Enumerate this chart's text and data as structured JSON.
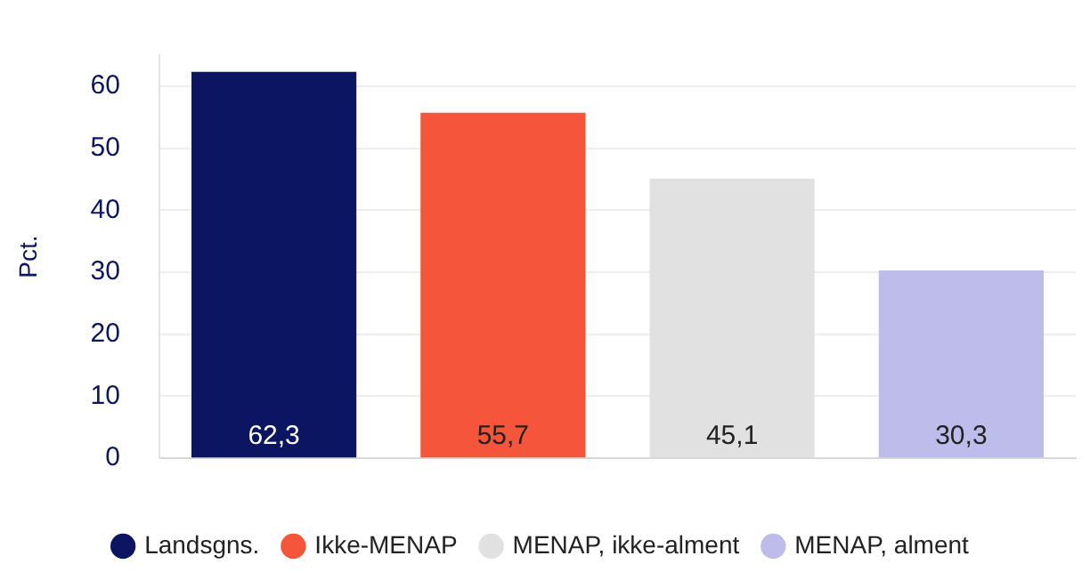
{
  "chart_data": {
    "type": "bar",
    "ylabel": "Pct.",
    "categories": [
      null,
      null,
      null,
      null
    ],
    "series": [
      {
        "name": "Landsgns.",
        "color": "#0b1561",
        "values": [
          62.3,
          null,
          null,
          null
        ],
        "value_labels": [
          "62,3",
          null,
          null,
          null
        ]
      },
      {
        "name": "Ikke-MENAP",
        "color": "#f5553a",
        "values": [
          null,
          55.7,
          null,
          null
        ],
        "value_labels": [
          null,
          "55,7",
          null,
          null
        ]
      },
      {
        "name": "MENAP, ikke-alment",
        "color": "#e1e1e1",
        "values": [
          null,
          null,
          45.1,
          null
        ],
        "value_labels": [
          null,
          null,
          "45,1",
          null
        ]
      },
      {
        "name": "MENAP, alment",
        "color": "#bdbcea",
        "values": [
          null,
          null,
          null,
          30.3
        ],
        "value_labels": [
          null,
          null,
          null,
          "30,3"
        ]
      }
    ],
    "ylim": [
      0,
      65
    ],
    "yticks": [
      0,
      10,
      20,
      30,
      40,
      50,
      60
    ],
    "grid": "y",
    "legend": "bottom"
  }
}
